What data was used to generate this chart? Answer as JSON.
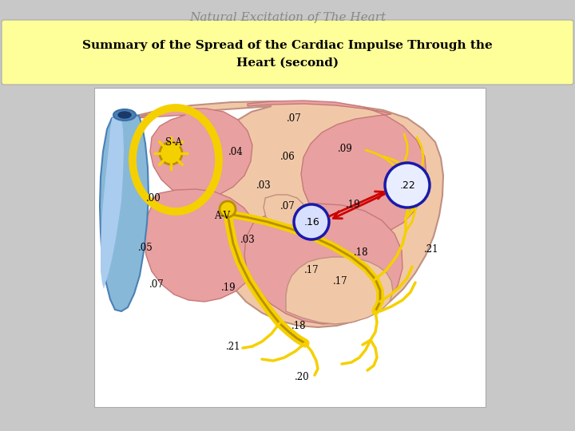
{
  "title": "Natural Excitation of The Heart",
  "subtitle_line1": "Summary of the Spread of the Cardiac Impulse Through the",
  "subtitle_line2": "Heart (second)",
  "bg_color": "#c8c8c8",
  "subtitle_bg": "#ffff99",
  "title_color": "#888888",
  "title_fontsize": 11,
  "subtitle_fontsize": 11,
  "heart_dark": "#e8a0a0",
  "heart_outline": "#c87878",
  "vessel_blue": "#88b8d8",
  "vessel_blue_dark": "#4a80b5",
  "yellow_pathway": "#f5d000",
  "yellow_dark": "#b89000",
  "blue_circle_color": "#1a1aaa",
  "red_arrow_color": "#cc0000",
  "peach_region": "#f0c8a8",
  "white_box": "#ffffff"
}
